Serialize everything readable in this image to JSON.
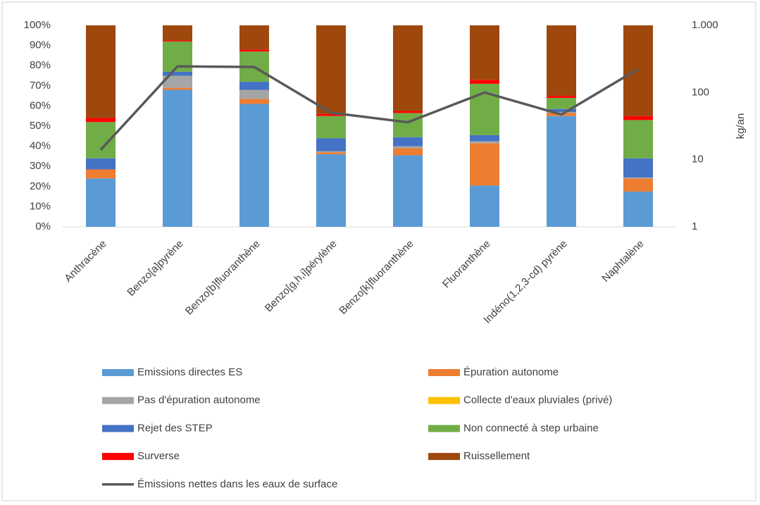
{
  "chart_data": {
    "type": "stacked-bar-line",
    "categories": [
      "Anthracène",
      "Benzo[a]pyrène",
      "Benzo[b]fluoranthène",
      "Benzo[g,h,i]pérylène",
      "Benzo[k]fluoranthène",
      "Fluoranthène",
      "Indéno(1,2,3-cd) pyrène",
      "Naphtalène"
    ],
    "series": [
      {
        "name": "Emissions directes ES",
        "color": "#5b9bd5",
        "values": [
          24,
          68,
          61,
          36,
          35.5,
          20.5,
          55,
          17.5
        ]
      },
      {
        "name": "Épuration autonome",
        "color": "#ed7d31",
        "values": [
          4.5,
          1,
          2.5,
          1,
          3.5,
          21,
          1.5,
          6.5
        ]
      },
      {
        "name": "Pas d'épuration autonome",
        "color": "#a5a5a5",
        "values": [
          0,
          6,
          4.5,
          0.5,
          1,
          1,
          0.5,
          0.5
        ]
      },
      {
        "name": "Collecte d'eaux pluviales (privé)",
        "color": "#ffc000",
        "values": [
          0,
          0,
          0,
          0,
          0,
          0,
          0,
          0
        ]
      },
      {
        "name": "Rejet des STEP",
        "color": "#4472c4",
        "values": [
          5.5,
          2,
          4,
          6.5,
          4.5,
          3,
          1.5,
          9.5
        ]
      },
      {
        "name": "Non connecté à step urbaine",
        "color": "#70ad47",
        "values": [
          18,
          15,
          15,
          11,
          12,
          25.5,
          5.5,
          19
        ]
      },
      {
        "name": "Surverse",
        "color": "#ff0000",
        "values": [
          2,
          0.5,
          1,
          1,
          1,
          2,
          1,
          2
        ]
      },
      {
        "name": "Ruissellement",
        "color": "#9e480e",
        "values": [
          46,
          7.5,
          12,
          44,
          42.5,
          27,
          35,
          45
        ]
      },
      {
        "name": "Émissions nettes dans les eaux de surface",
        "color": "#595959",
        "axis": "y2",
        "type": "line",
        "values": [
          14,
          245,
          240,
          50,
          36,
          100,
          47,
          224
        ]
      }
    ],
    "ylim": [
      0,
      100
    ],
    "yticks": [
      {
        "value": 0,
        "label": "0%"
      },
      {
        "value": 10,
        "label": "10%"
      },
      {
        "value": 20,
        "label": "20%"
      },
      {
        "value": 30,
        "label": "30%"
      },
      {
        "value": 40,
        "label": "40%"
      },
      {
        "value": 50,
        "label": "50%"
      },
      {
        "value": 60,
        "label": "60%"
      },
      {
        "value": 70,
        "label": "70%"
      },
      {
        "value": 80,
        "label": "80%"
      },
      {
        "value": 90,
        "label": "90%"
      },
      {
        "value": 100,
        "label": "100%"
      }
    ],
    "y2lim": [
      1,
      1000
    ],
    "y2ticks": [
      1,
      10,
      100,
      {
        "value": 1000,
        "label": "1.000"
      }
    ],
    "y2scale": "log",
    "y2label": "kg/an",
    "grid": false,
    "legend": "bottom"
  }
}
